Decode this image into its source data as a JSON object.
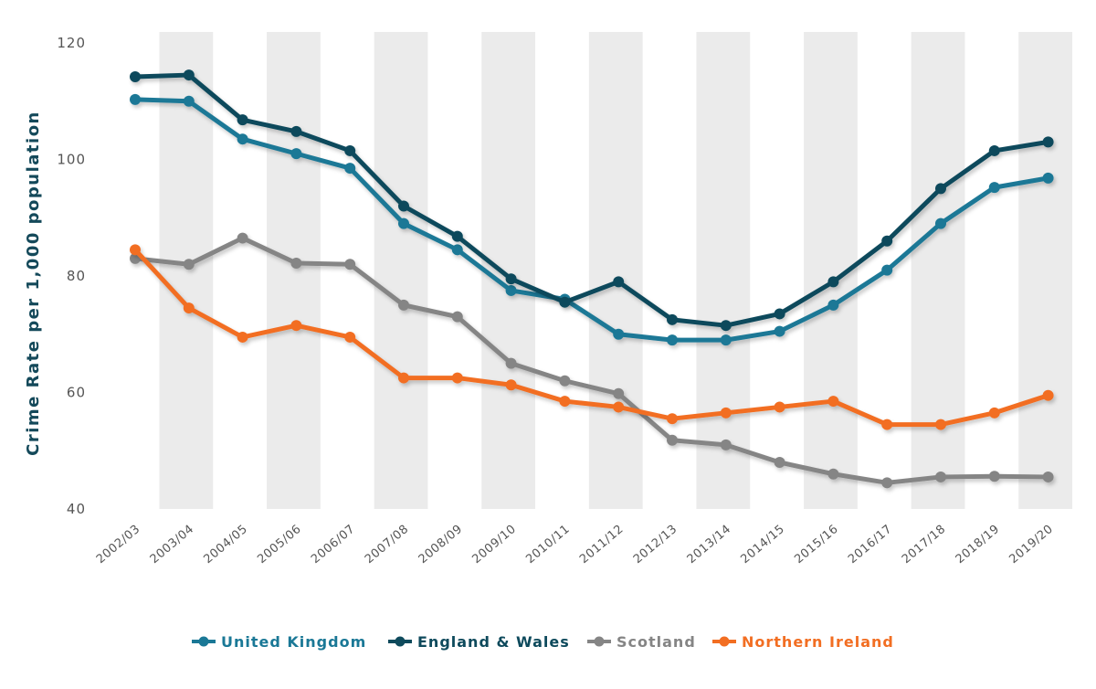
{
  "chart_data": {
    "type": "line",
    "title": "",
    "xlabel": "",
    "ylabel": "Crime Rate per 1,000 population",
    "ylim": [
      40,
      120
    ],
    "yticks": [
      40,
      60,
      80,
      100,
      120
    ],
    "categories": [
      "2002/03",
      "2003/04",
      "2004/05",
      "2005/06",
      "2006/07",
      "2007/08",
      "2008/09",
      "2009/10",
      "2010/11",
      "2011/12",
      "2012/13",
      "2013/14",
      "2014/15",
      "2015/16",
      "2016/17",
      "2017/18",
      "2018/19",
      "2019/20"
    ],
    "grid": "alternating vertical bands",
    "legend_position": "bottom",
    "series": [
      {
        "name": "United Kingdom",
        "color": "#1a7896",
        "values": [
          110.3,
          110.0,
          103.5,
          101.0,
          98.5,
          89.0,
          84.5,
          77.5,
          76.0,
          70.0,
          69.0,
          69.0,
          70.5,
          75.0,
          81.0,
          89.0,
          95.2,
          96.8
        ]
      },
      {
        "name": "England & Wales",
        "color": "#0e4a5c",
        "values": [
          114.2,
          114.5,
          106.8,
          104.8,
          101.5,
          92.0,
          86.8,
          79.5,
          75.5,
          79.0,
          72.5,
          71.5,
          73.5,
          79.0,
          86.0,
          95.0,
          101.5,
          103.0
        ]
      },
      {
        "name": "Scotland",
        "color": "#858585",
        "values": [
          83.0,
          82.0,
          86.5,
          82.2,
          82.0,
          75.0,
          73.0,
          65.0,
          62.0,
          59.8,
          51.8,
          51.0,
          48.0,
          46.0,
          44.5,
          45.5,
          45.6,
          45.5
        ]
      },
      {
        "name": "Northern Ireland",
        "color": "#f26e22",
        "values": [
          84.5,
          74.5,
          69.5,
          71.5,
          69.5,
          62.5,
          62.5,
          61.3,
          58.5,
          57.5,
          55.5,
          56.5,
          57.5,
          58.5,
          54.5,
          54.5,
          56.5,
          59.5
        ]
      }
    ]
  }
}
